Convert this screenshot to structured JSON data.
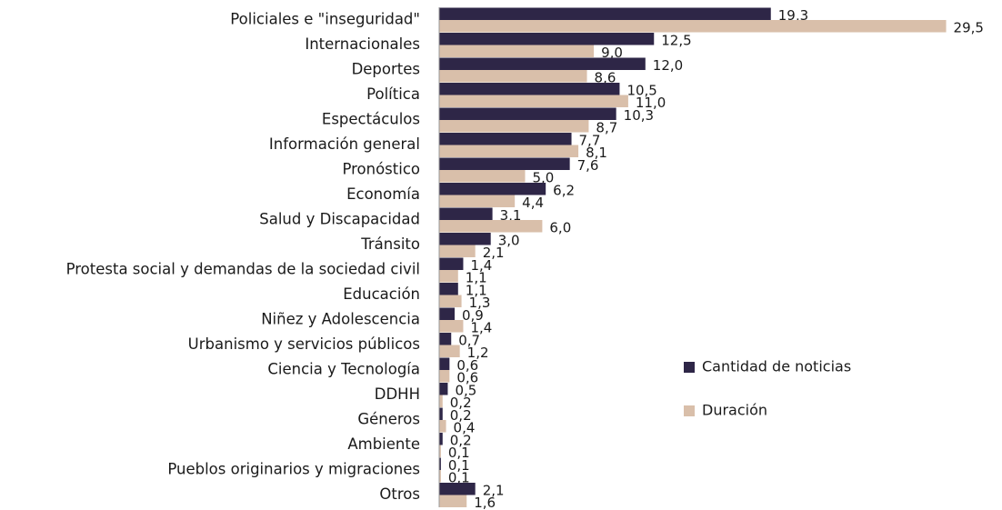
{
  "chart_data": {
    "type": "bar",
    "orientation": "horizontal",
    "categories": [
      "Policiales e \"inseguridad\"",
      "Internacionales",
      "Deportes",
      "Política",
      "Espectáculos",
      "Información general",
      "Pronóstico",
      "Economía",
      "Salud y Discapacidad",
      "Tránsito",
      "Protesta social y demandas de la sociedad civil",
      "Educación",
      "Niñez y Adolescencia",
      "Urbanismo y servicios públicos",
      "Ciencia y Tecnología",
      "DDHH",
      "Géneros",
      "Ambiente",
      "Pueblos originarios y migraciones",
      "Otros"
    ],
    "series": [
      {
        "name": "Cantidad de noticias",
        "color": "#2e2647",
        "values": [
          19.3,
          12.5,
          12.0,
          10.5,
          10.3,
          7.7,
          7.6,
          6.2,
          3.1,
          3.0,
          1.4,
          1.1,
          0.9,
          0.7,
          0.6,
          0.5,
          0.2,
          0.2,
          0.1,
          2.1
        ],
        "value_labels": [
          "19,3",
          "12,5",
          "12,0",
          "10,5",
          "10,3",
          "7,7",
          "7,6",
          "6,2",
          "3,1",
          "3,0",
          "1,4",
          "1,1",
          "0,9",
          "0,7",
          "0,6",
          "0,5",
          "0,2",
          "0,2",
          "0,1",
          "2,1"
        ]
      },
      {
        "name": "Duración",
        "color": "#d9bfaa",
        "values": [
          29.5,
          9.0,
          8.6,
          11.0,
          8.7,
          8.1,
          5.0,
          4.4,
          6.0,
          2.1,
          1.1,
          1.3,
          1.4,
          1.2,
          0.6,
          0.2,
          0.4,
          0.1,
          0.1,
          1.6
        ],
        "value_labels": [
          "29,5",
          "9,0",
          "8,6",
          "11,0",
          "8,7",
          "8,1",
          "5,0",
          "4,4",
          "6,0",
          "2,1",
          "1,1",
          "1,3",
          "1,4",
          "1,2",
          "0,6",
          "0,2",
          "0,4",
          "0,1",
          "0,1",
          "1,6"
        ]
      }
    ],
    "xlim": [
      0,
      30
    ],
    "legend": "right"
  }
}
